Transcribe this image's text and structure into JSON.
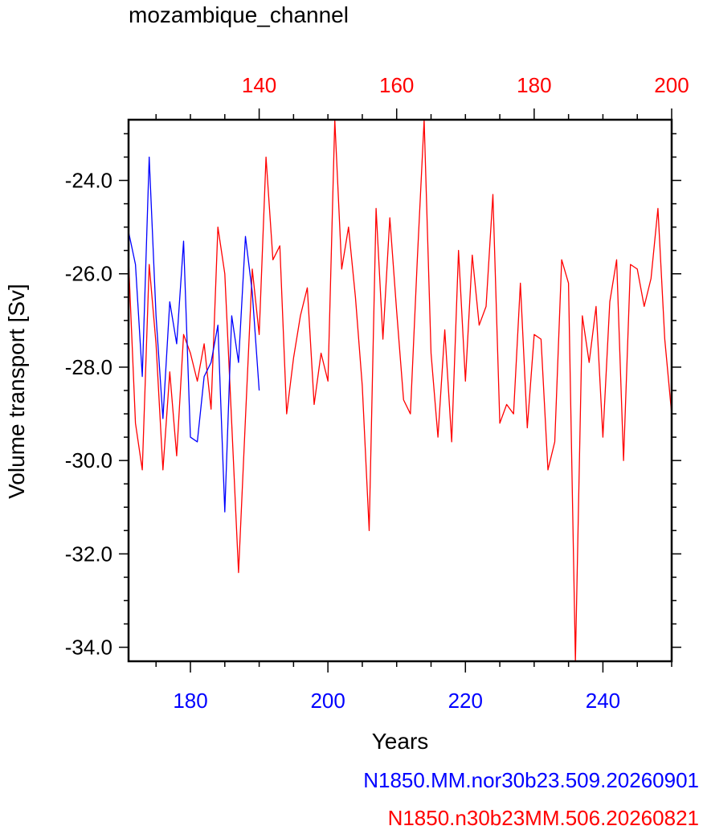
{
  "chart_data": {
    "type": "line",
    "title": "mozambique_channel",
    "ylabel": "Volume transport [Sv]",
    "xlabel": "Years",
    "ylim": [
      -34.3,
      -22.7
    ],
    "grid": false,
    "y_ticks": [
      -24.0,
      -26.0,
      -28.0,
      -30.0,
      -32.0,
      -34.0
    ],
    "y_tick_labels": [
      "-24.0",
      "-26.0",
      "-28.0",
      "-30.0",
      "-32.0",
      "-34.0"
    ],
    "bottom_axis": {
      "color": "#0000ff",
      "xlim": [
        171,
        250
      ],
      "ticks": [
        180,
        200,
        220,
        240
      ],
      "tick_labels": [
        "180",
        "200",
        "220",
        "240"
      ]
    },
    "top_axis": {
      "color": "#ff0000",
      "xlim": [
        121,
        200
      ],
      "ticks": [
        140,
        160,
        180,
        200
      ],
      "tick_labels": [
        "140",
        "160",
        "180",
        "200"
      ]
    },
    "series": [
      {
        "name": "N1850.MM.nor30b23.509.20260901",
        "color": "#0000ff",
        "axis": "bottom",
        "x": [
          171,
          172,
          173,
          174,
          175,
          176,
          177,
          178,
          179,
          180,
          181,
          182,
          183,
          184,
          185,
          186,
          187,
          188,
          189,
          190
        ],
        "y": [
          -25.1,
          -25.8,
          -28.2,
          -23.5,
          -26.9,
          -29.1,
          -26.6,
          -27.5,
          -25.3,
          -29.5,
          -29.6,
          -28.2,
          -27.9,
          -27.1,
          -31.1,
          -26.9,
          -27.9,
          -25.2,
          -26.4,
          -28.5
        ]
      },
      {
        "name": "N1850.n30b23MM.506.20260821",
        "color": "#ff0000",
        "axis": "top",
        "x": [
          121,
          122,
          123,
          124,
          125,
          126,
          127,
          128,
          129,
          130,
          131,
          132,
          133,
          134,
          135,
          136,
          137,
          138,
          139,
          140,
          141,
          142,
          143,
          144,
          145,
          146,
          147,
          148,
          149,
          150,
          151,
          152,
          153,
          154,
          155,
          156,
          157,
          158,
          159,
          160,
          161,
          162,
          163,
          164,
          165,
          166,
          167,
          168,
          169,
          170,
          171,
          172,
          173,
          174,
          175,
          176,
          177,
          178,
          179,
          180,
          181,
          182,
          183,
          184,
          185,
          186,
          187,
          188,
          189,
          190,
          191,
          192,
          193,
          194,
          195,
          196,
          197,
          198,
          199,
          200
        ],
        "y": [
          -25.7,
          -29.2,
          -30.2,
          -25.8,
          -27.5,
          -30.2,
          -28.1,
          -29.9,
          -27.3,
          -27.7,
          -28.3,
          -27.5,
          -28.9,
          -25.0,
          -26.0,
          -29.2,
          -32.4,
          -29.1,
          -25.9,
          -27.3,
          -23.5,
          -25.7,
          -25.4,
          -29.0,
          -27.8,
          -26.9,
          -26.3,
          -28.8,
          -27.7,
          -28.3,
          -22.7,
          -25.9,
          -25.0,
          -26.5,
          -28.4,
          -31.5,
          -24.6,
          -27.4,
          -24.8,
          -26.8,
          -28.7,
          -29.0,
          -25.7,
          -22.7,
          -27.7,
          -29.5,
          -27.2,
          -29.6,
          -25.5,
          -28.3,
          -25.6,
          -27.1,
          -26.7,
          -24.3,
          -29.2,
          -28.8,
          -29.0,
          -26.2,
          -29.3,
          -27.3,
          -27.4,
          -30.2,
          -29.6,
          -25.7,
          -26.2,
          -34.3,
          -26.9,
          -27.9,
          -26.7,
          -29.5,
          -26.6,
          -25.7,
          -30.0,
          -25.8,
          -25.9,
          -26.7,
          -26.1,
          -24.6,
          -27.4,
          -29.0
        ]
      }
    ]
  }
}
